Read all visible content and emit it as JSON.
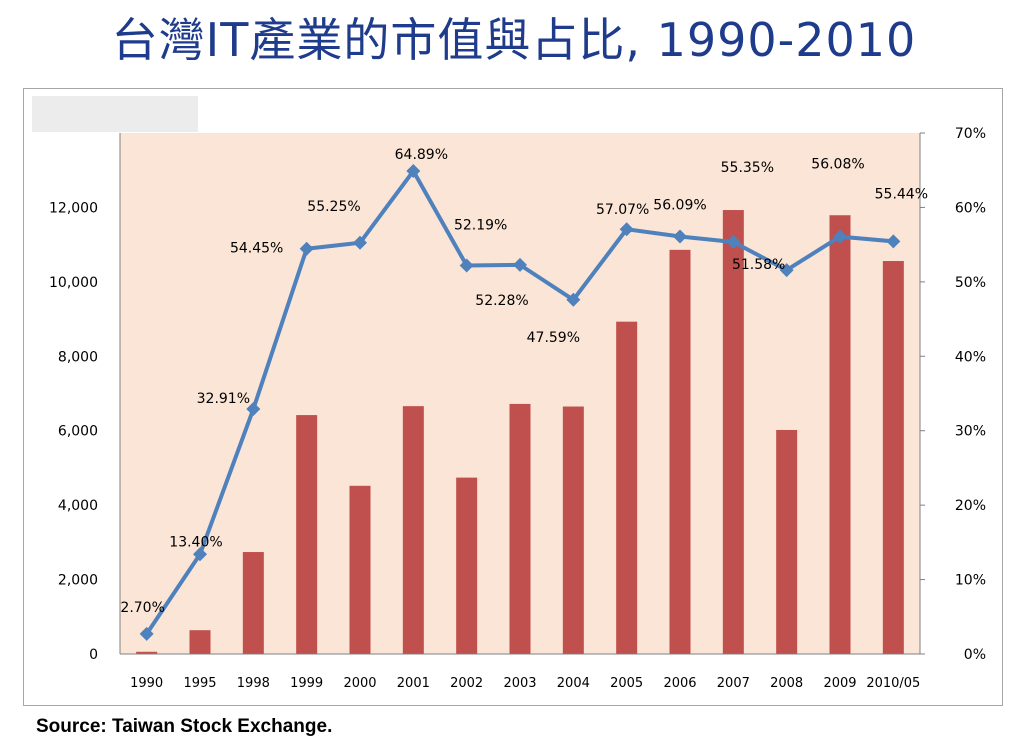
{
  "title": "台灣IT產業的市值與占比, 1990-2010",
  "source": "Source:  Taiwan Stock Exchange.",
  "chart_data": {
    "type": "bar",
    "categories": [
      "1990",
      "1995",
      "1998",
      "1999",
      "2000",
      "2001",
      "2002",
      "2003",
      "2004",
      "2005",
      "2006",
      "2007",
      "2008",
      "2009",
      "2010/05"
    ],
    "series": [
      {
        "type": "bar",
        "axis": "left",
        "color": "#c0504d",
        "values": [
          60,
          640,
          2740,
          6420,
          4520,
          6660,
          4740,
          6720,
          6650,
          8930,
          10860,
          11930,
          6020,
          11790,
          10560
        ]
      },
      {
        "type": "line",
        "axis": "right",
        "color": "#4f81bd",
        "values": [
          2.7,
          13.4,
          32.91,
          54.45,
          55.25,
          64.89,
          52.19,
          52.28,
          47.59,
          57.07,
          56.09,
          55.35,
          51.58,
          56.08,
          55.44
        ],
        "labels": [
          "2.70%",
          "13.40%",
          "32.91%",
          "54.45%",
          "55.25%",
          "64.89%",
          "52.19%",
          "52.28%",
          "47.59%",
          "57.07%",
          "56.09%",
          "55.35%",
          "51.58%",
          "56.08%",
          "55.44%"
        ]
      }
    ],
    "y_left": {
      "min": 0,
      "max": 14000,
      "ticks": [
        "0",
        "2,000",
        "4,000",
        "6,000",
        "8,000",
        "10,000",
        "12,000"
      ]
    },
    "y_right": {
      "min": 0,
      "max": 70,
      "ticks": [
        "0%",
        "10%",
        "20%",
        "30%",
        "40%",
        "50%",
        "60%",
        "70%"
      ]
    },
    "plot_background": "#fbe5d6",
    "grid": false
  }
}
